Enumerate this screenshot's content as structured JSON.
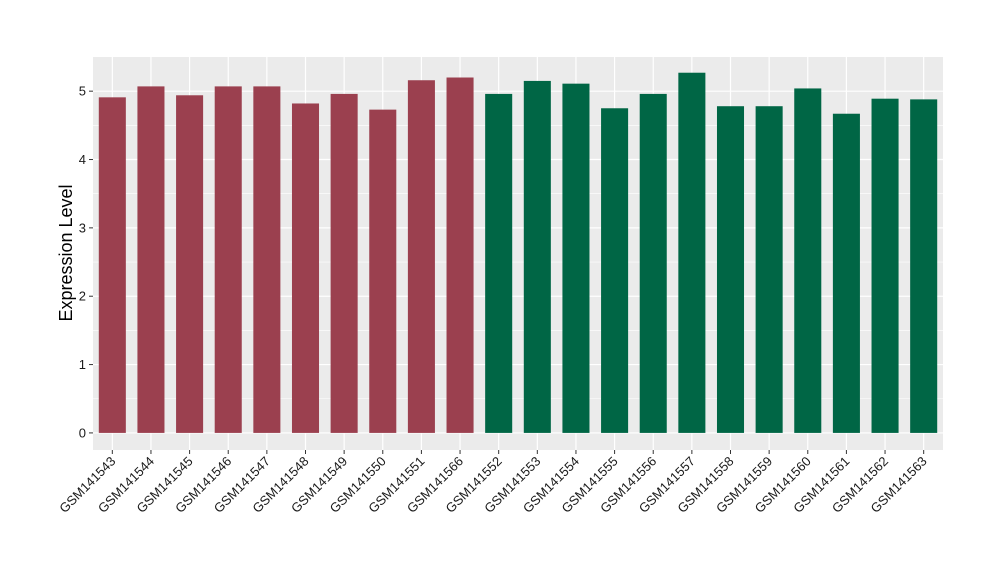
{
  "chart_data": {
    "type": "bar",
    "title": "",
    "xlabel": "",
    "ylabel": "Expression Level",
    "ylim": [
      -0.25,
      5.5
    ],
    "yticks": [
      0,
      1,
      2,
      3,
      4,
      5
    ],
    "grid": true,
    "legend": "none",
    "colors": {
      "panel_background": "#ebebeb",
      "grid_major": "#ffffff",
      "group_1": "#9b404f",
      "group_2": "#006645"
    },
    "categories": [
      "GSM141543",
      "GSM141544",
      "GSM141545",
      "GSM141546",
      "GSM141547",
      "GSM141548",
      "GSM141549",
      "GSM141550",
      "GSM141551",
      "GSM141566",
      "GSM141552",
      "GSM141553",
      "GSM141554",
      "GSM141555",
      "GSM141556",
      "GSM141557",
      "GSM141558",
      "GSM141559",
      "GSM141560",
      "GSM141561",
      "GSM141562",
      "GSM141563"
    ],
    "values": [
      4.91,
      5.07,
      4.94,
      5.07,
      5.07,
      4.82,
      4.96,
      4.73,
      5.16,
      5.2,
      4.96,
      5.15,
      5.11,
      4.75,
      4.96,
      5.27,
      4.78,
      4.78,
      5.04,
      4.67,
      4.89,
      4.88
    ],
    "groups": [
      1,
      1,
      1,
      1,
      1,
      1,
      1,
      1,
      1,
      1,
      2,
      2,
      2,
      2,
      2,
      2,
      2,
      2,
      2,
      2,
      2,
      2
    ]
  }
}
